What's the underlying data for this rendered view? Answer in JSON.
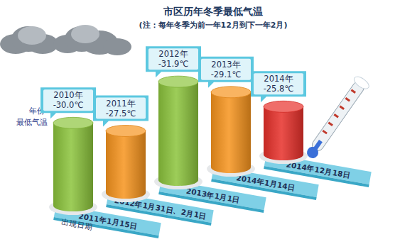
{
  "chart_data": {
    "type": "bar",
    "title": "市区历年冬季最低气温",
    "subtitle": "(注：每年冬季为前一年12月到下一年2月)",
    "category_caption": "年份",
    "value_caption": "最低气温",
    "date_caption": "出现日期",
    "categories": [
      "2010年",
      "2011年",
      "2012年",
      "2013年",
      "2014年"
    ],
    "values": [
      -30.0,
      -27.5,
      -31.9,
      -29.1,
      -25.8
    ],
    "value_labels": [
      "-30.0℃",
      "-27.5℃",
      "-31.9℃",
      "-29.1℃",
      "-25.8℃"
    ],
    "dates": [
      "2011年1月15日",
      "2012年1月31日、2月1日",
      "2013年1月1日",
      "2014年1月14日",
      "2014年12月18日"
    ],
    "colors": [
      "#8cc43c",
      "#f7941d",
      "#8cc43c",
      "#f7941d",
      "#e8302a"
    ],
    "ylim": [
      -20,
      -32
    ],
    "tick_labels": false,
    "data_labels": true,
    "grid": false
  }
}
